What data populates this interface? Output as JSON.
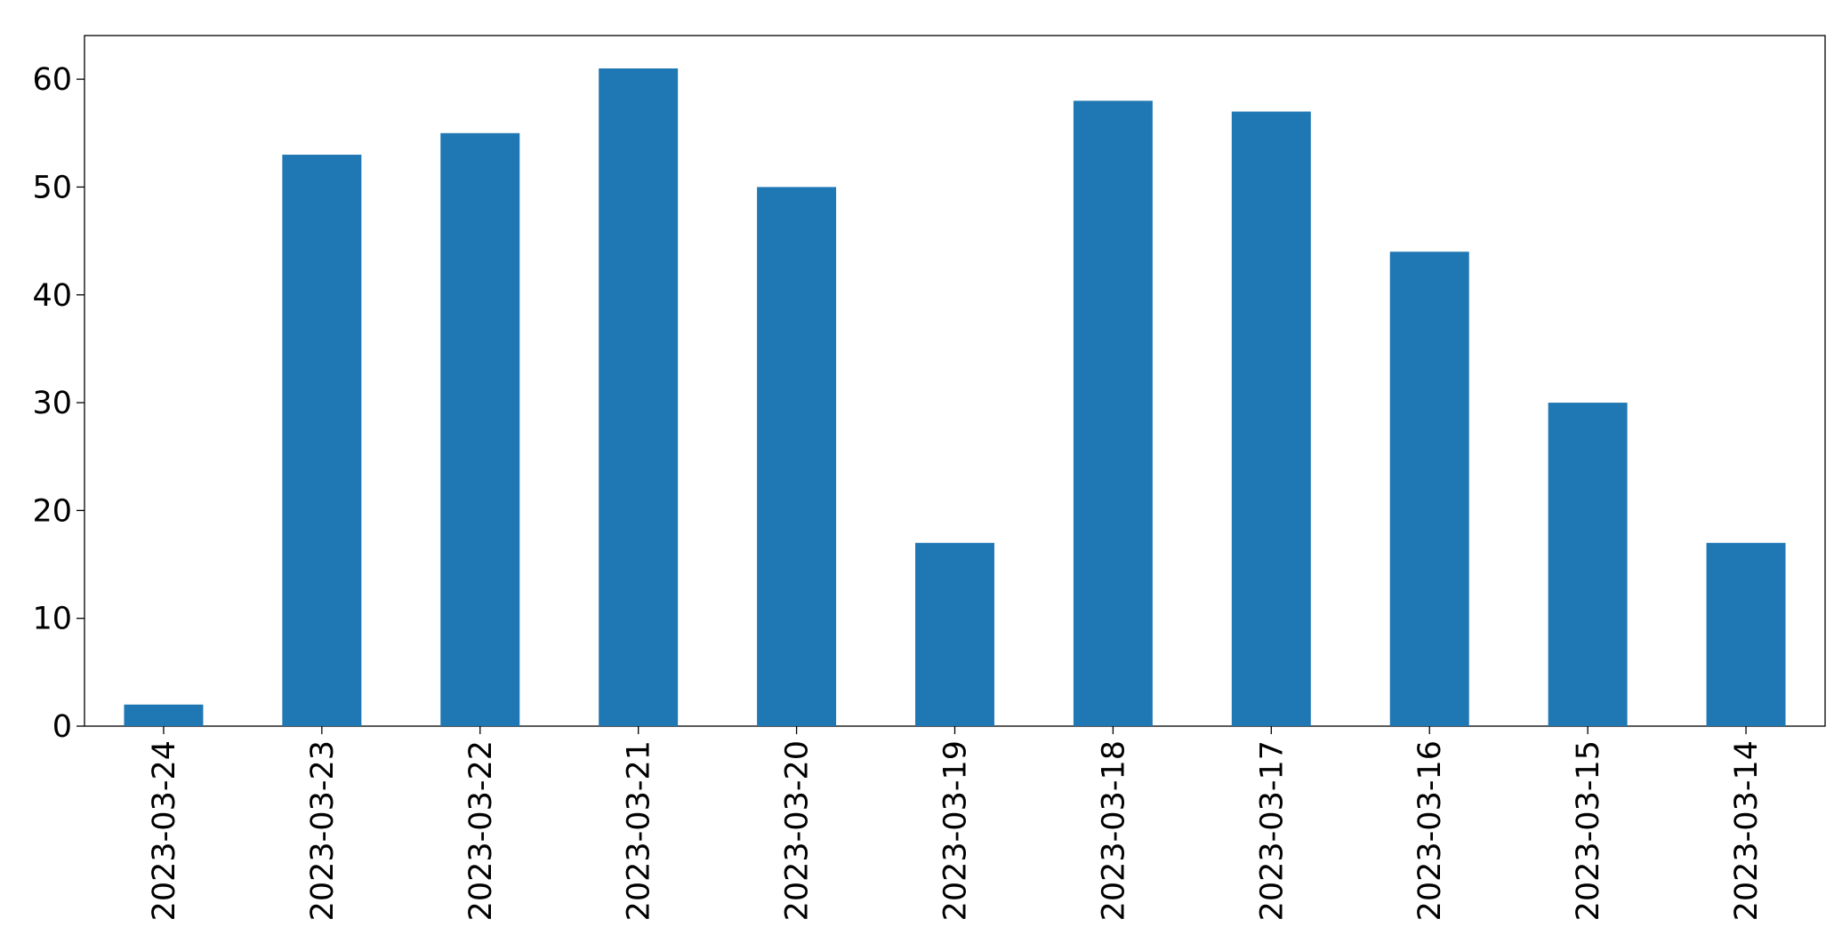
{
  "chart_data": {
    "type": "bar",
    "categories": [
      "2023-03-24",
      "2023-03-23",
      "2023-03-22",
      "2023-03-21",
      "2023-03-20",
      "2023-03-19",
      "2023-03-18",
      "2023-03-17",
      "2023-03-16",
      "2023-03-15",
      "2023-03-14"
    ],
    "values": [
      2,
      53,
      55,
      61,
      50,
      17,
      58,
      57,
      44,
      30,
      17
    ],
    "color": "#1f77b4",
    "ylim": [
      0,
      64.05
    ],
    "yticks": [
      0,
      10,
      20,
      30,
      40,
      50,
      60
    ],
    "grid": false
  }
}
